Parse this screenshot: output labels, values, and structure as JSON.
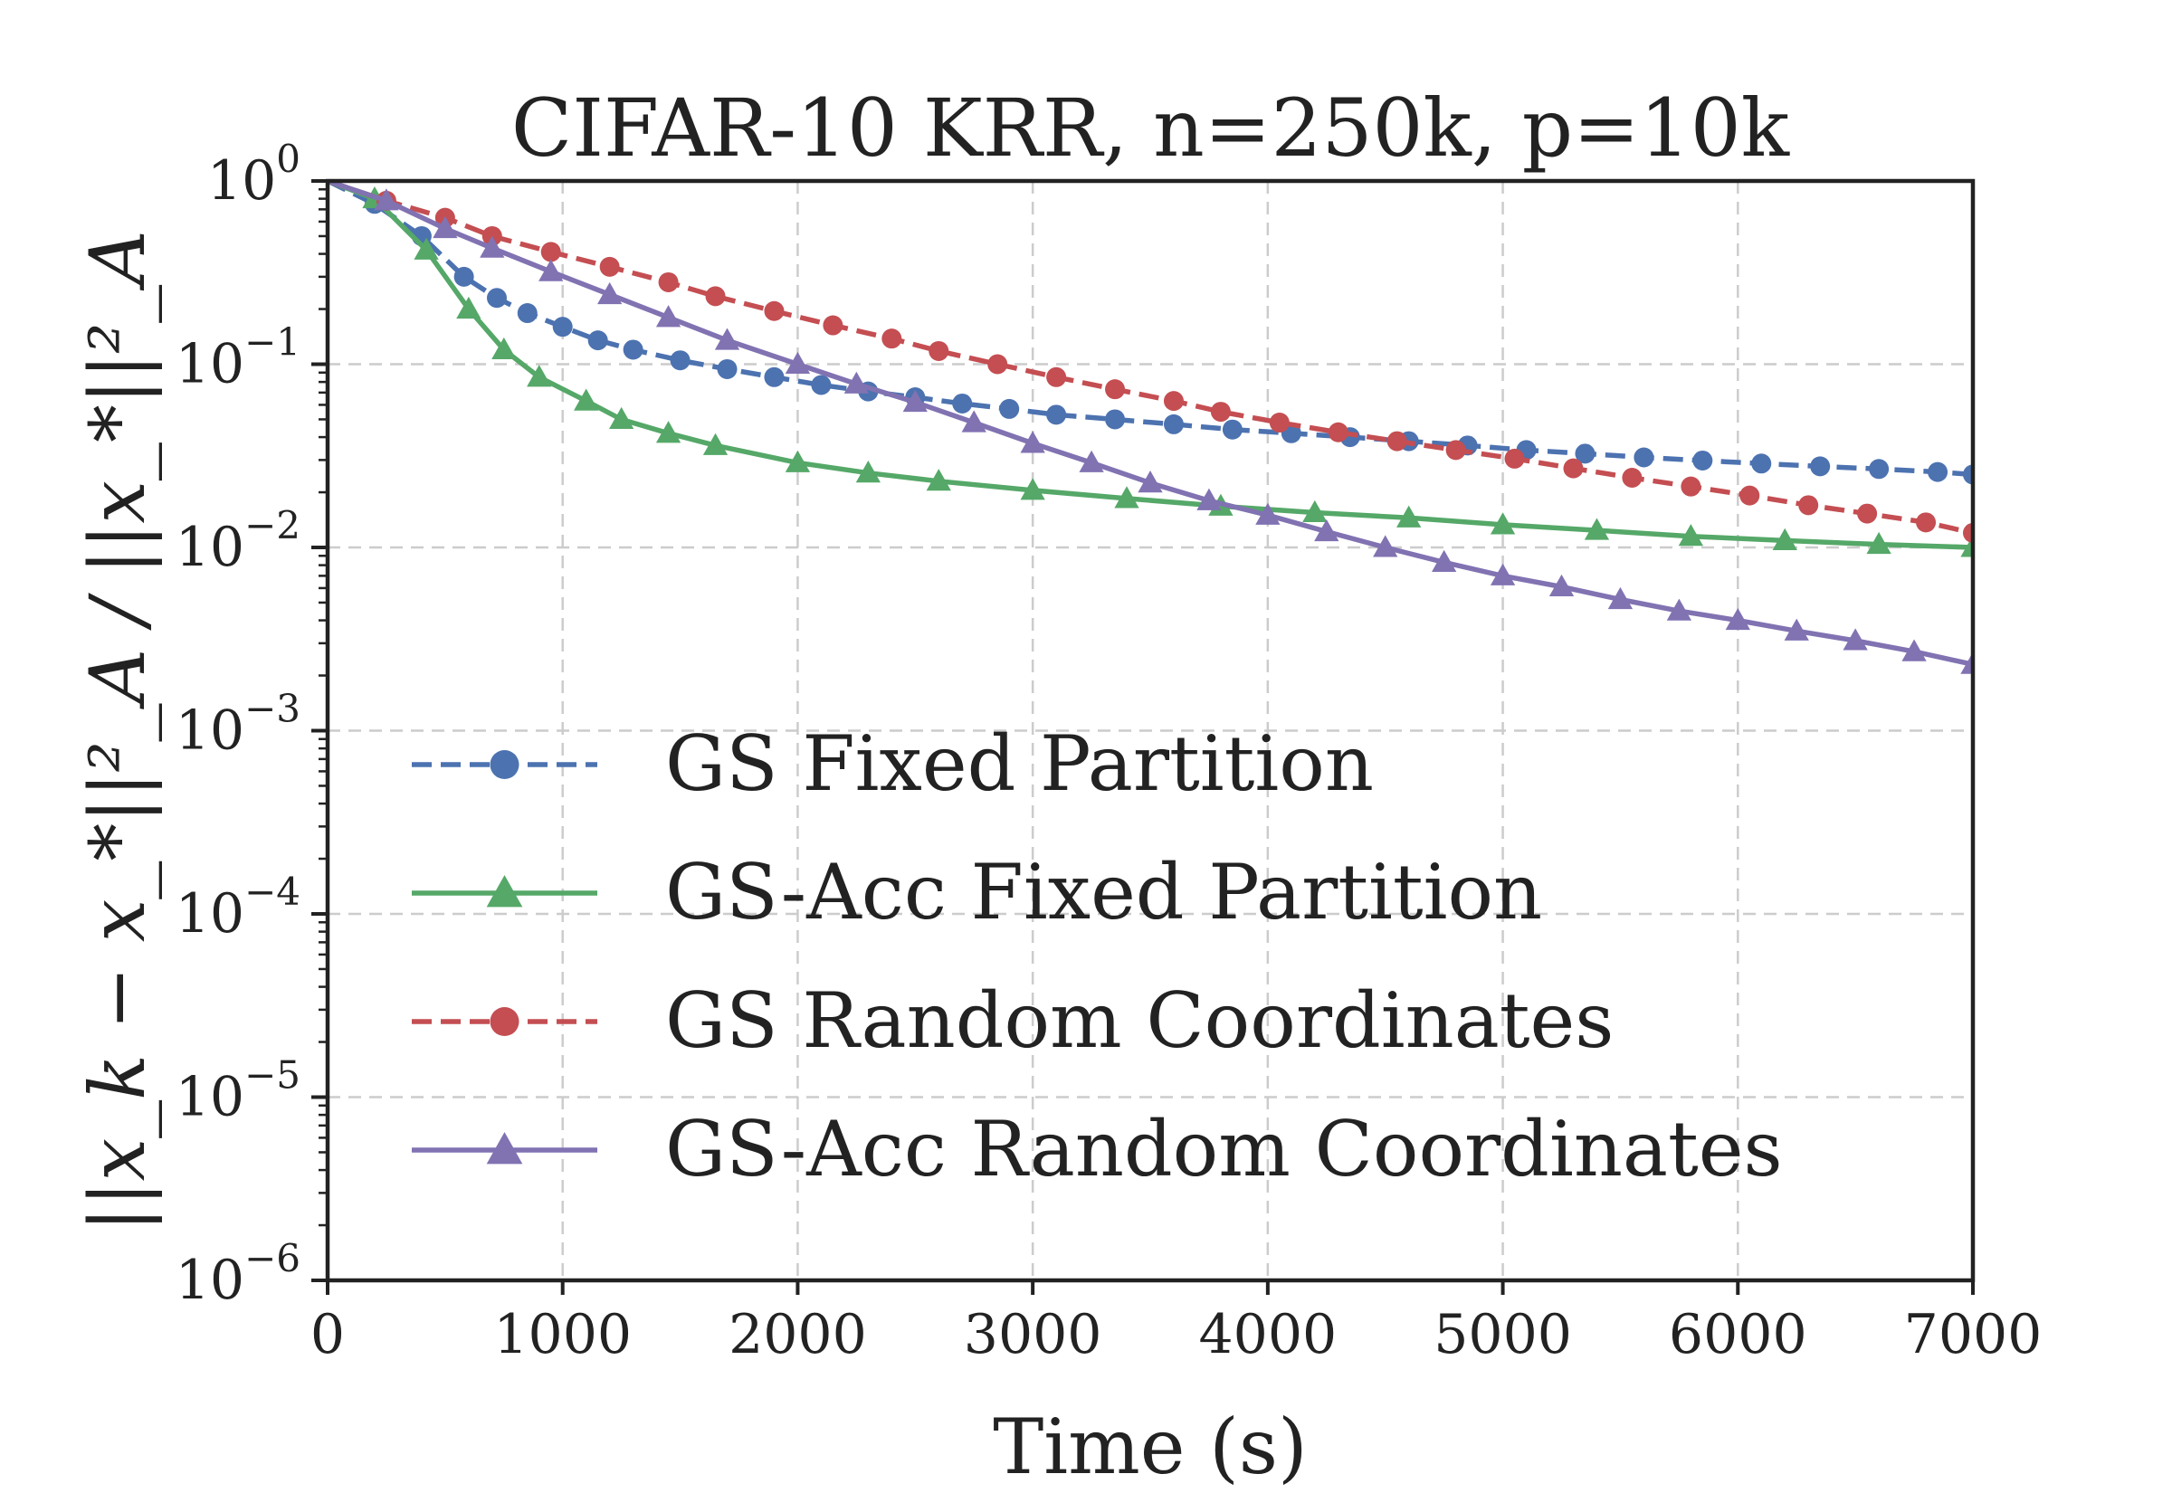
{
  "chart_data": {
    "type": "line",
    "title": "CIFAR-10 KRR, n=250k, p=10k",
    "xlabel": "Time (s)",
    "ylabel": "||x_k − x_*||²_A / ||x_*||²_A",
    "xlim": [
      0,
      7000
    ],
    "ylim": [
      1e-06,
      1
    ],
    "yscale": "log",
    "xticks": [
      0,
      1000,
      2000,
      3000,
      4000,
      5000,
      6000,
      7000
    ],
    "xtick_labels": [
      "0",
      "1000",
      "2000",
      "3000",
      "4000",
      "5000",
      "6000",
      "7000"
    ],
    "ytick_exponents": [
      "0",
      "−1",
      "−2",
      "−3",
      "−4",
      "−5",
      "−6"
    ],
    "ytick_base": "10",
    "grid": true,
    "legend_position": "lower-left",
    "series": [
      {
        "name": "GS Fixed Partition",
        "color": "#4c72b0",
        "line_style": "dashed",
        "marker": "circle",
        "x": [
          0,
          200,
          400,
          580,
          720,
          850,
          1000,
          1150,
          1300,
          1500,
          1700,
          1900,
          2100,
          2300,
          2500,
          2700,
          2900,
          3100,
          3350,
          3600,
          3850,
          4100,
          4350,
          4600,
          4850,
          5100,
          5350,
          5600,
          5850,
          6100,
          6350,
          6600,
          6850,
          7000
        ],
        "y": [
          1.0,
          0.75,
          0.5,
          0.3,
          0.23,
          0.19,
          0.16,
          0.135,
          0.12,
          0.105,
          0.094,
          0.085,
          0.077,
          0.071,
          0.066,
          0.061,
          0.057,
          0.053,
          0.05,
          0.047,
          0.044,
          0.042,
          0.04,
          0.038,
          0.036,
          0.034,
          0.0325,
          0.031,
          0.0298,
          0.0287,
          0.0277,
          0.0268,
          0.0258,
          0.025
        ]
      },
      {
        "name": "GS-Acc Fixed Partition",
        "color": "#55a868",
        "line_style": "solid",
        "marker": "triangle",
        "x": [
          0,
          200,
          420,
          600,
          750,
          900,
          1100,
          1250,
          1450,
          1650,
          2000,
          2300,
          2600,
          3000,
          3400,
          3800,
          4200,
          4600,
          5000,
          5400,
          5800,
          6200,
          6600,
          7000
        ],
        "y": [
          1.0,
          0.8,
          0.42,
          0.2,
          0.12,
          0.085,
          0.063,
          0.05,
          0.042,
          0.036,
          0.029,
          0.0255,
          0.023,
          0.0205,
          0.0185,
          0.0168,
          0.0155,
          0.0145,
          0.0133,
          0.0124,
          0.0115,
          0.0109,
          0.0104,
          0.01
        ]
      },
      {
        "name": "GS Random Coordinates",
        "color": "#c44e52",
        "line_style": "dashed",
        "marker": "circle",
        "x": [
          0,
          250,
          500,
          700,
          950,
          1200,
          1450,
          1650,
          1900,
          2150,
          2400,
          2600,
          2850,
          3100,
          3350,
          3600,
          3800,
          4050,
          4300,
          4550,
          4800,
          5050,
          5300,
          5550,
          5800,
          6050,
          6300,
          6550,
          6800,
          7000
        ],
        "y": [
          1.0,
          0.78,
          0.63,
          0.5,
          0.41,
          0.34,
          0.28,
          0.235,
          0.195,
          0.163,
          0.138,
          0.118,
          0.1,
          0.085,
          0.073,
          0.063,
          0.055,
          0.048,
          0.0425,
          0.038,
          0.034,
          0.0305,
          0.027,
          0.024,
          0.0215,
          0.0192,
          0.017,
          0.0153,
          0.0137,
          0.012
        ]
      },
      {
        "name": "GS-Acc Random Coordinates",
        "color": "#8172b2",
        "line_style": "solid",
        "marker": "triangle",
        "x": [
          0,
          250,
          500,
          700,
          950,
          1200,
          1450,
          1700,
          2000,
          2250,
          2500,
          2750,
          3000,
          3250,
          3500,
          3750,
          4000,
          4250,
          4500,
          4750,
          5000,
          5250,
          5500,
          5750,
          6000,
          6250,
          6500,
          6750,
          7000
        ],
        "y": [
          1.0,
          0.78,
          0.55,
          0.43,
          0.32,
          0.24,
          0.18,
          0.135,
          0.1,
          0.078,
          0.062,
          0.048,
          0.037,
          0.029,
          0.0225,
          0.018,
          0.015,
          0.0122,
          0.01,
          0.0083,
          0.007,
          0.0061,
          0.0052,
          0.0045,
          0.004,
          0.0035,
          0.0031,
          0.0027,
          0.0023
        ]
      }
    ]
  }
}
